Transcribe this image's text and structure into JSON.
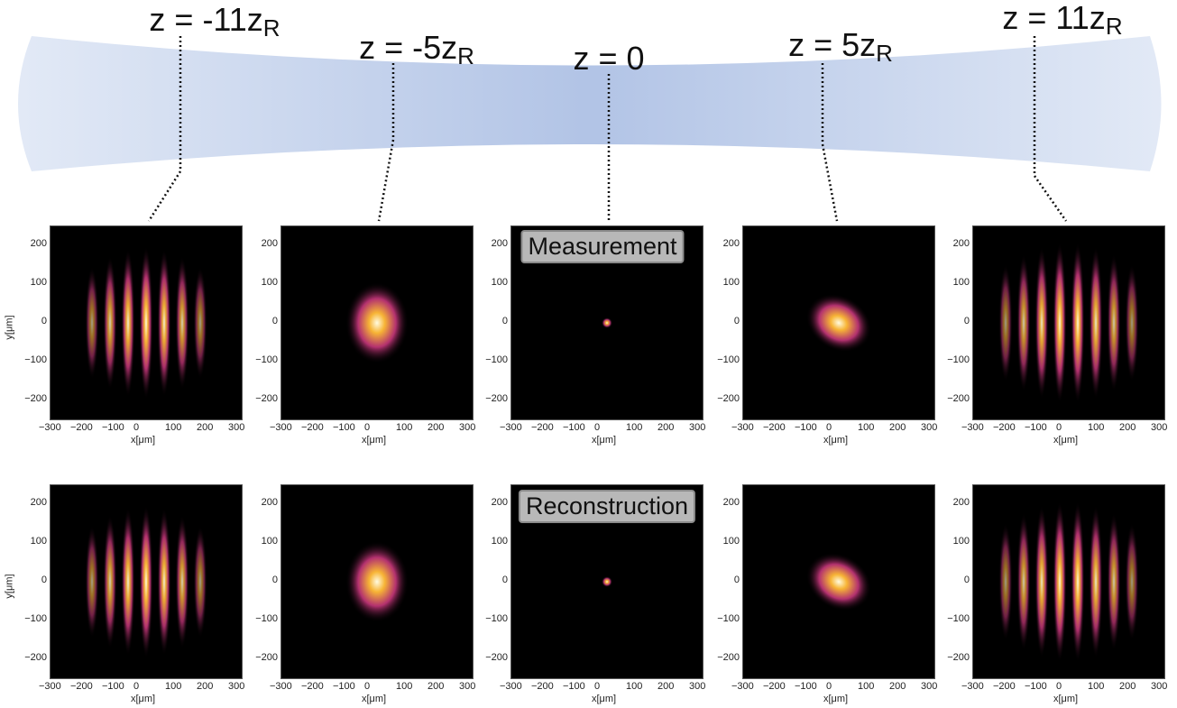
{
  "z_labels": [
    {
      "id": "m11",
      "text": "z = -11z",
      "sub": "R"
    },
    {
      "id": "m5",
      "text": "z = -5z",
      "sub": "R"
    },
    {
      "id": "z0",
      "text": "z = 0",
      "sub": ""
    },
    {
      "id": "p5",
      "text": "z = 5z",
      "sub": "R"
    },
    {
      "id": "p11",
      "text": "z = 11z",
      "sub": "R"
    }
  ],
  "row_labels": {
    "top": "Measurement",
    "bottom": "Reconstruction"
  },
  "axes": {
    "xlabel": "x[μm]",
    "ylabel": "y[μm]",
    "x_ticks": [
      "−300",
      "−200",
      "−100",
      "0",
      "100",
      "200",
      "300"
    ],
    "y_ticks": [
      "200",
      "100",
      "0",
      "−100",
      "−200"
    ]
  },
  "colors": {
    "beam": "#b4c6e7",
    "colormap": "inferno"
  }
}
